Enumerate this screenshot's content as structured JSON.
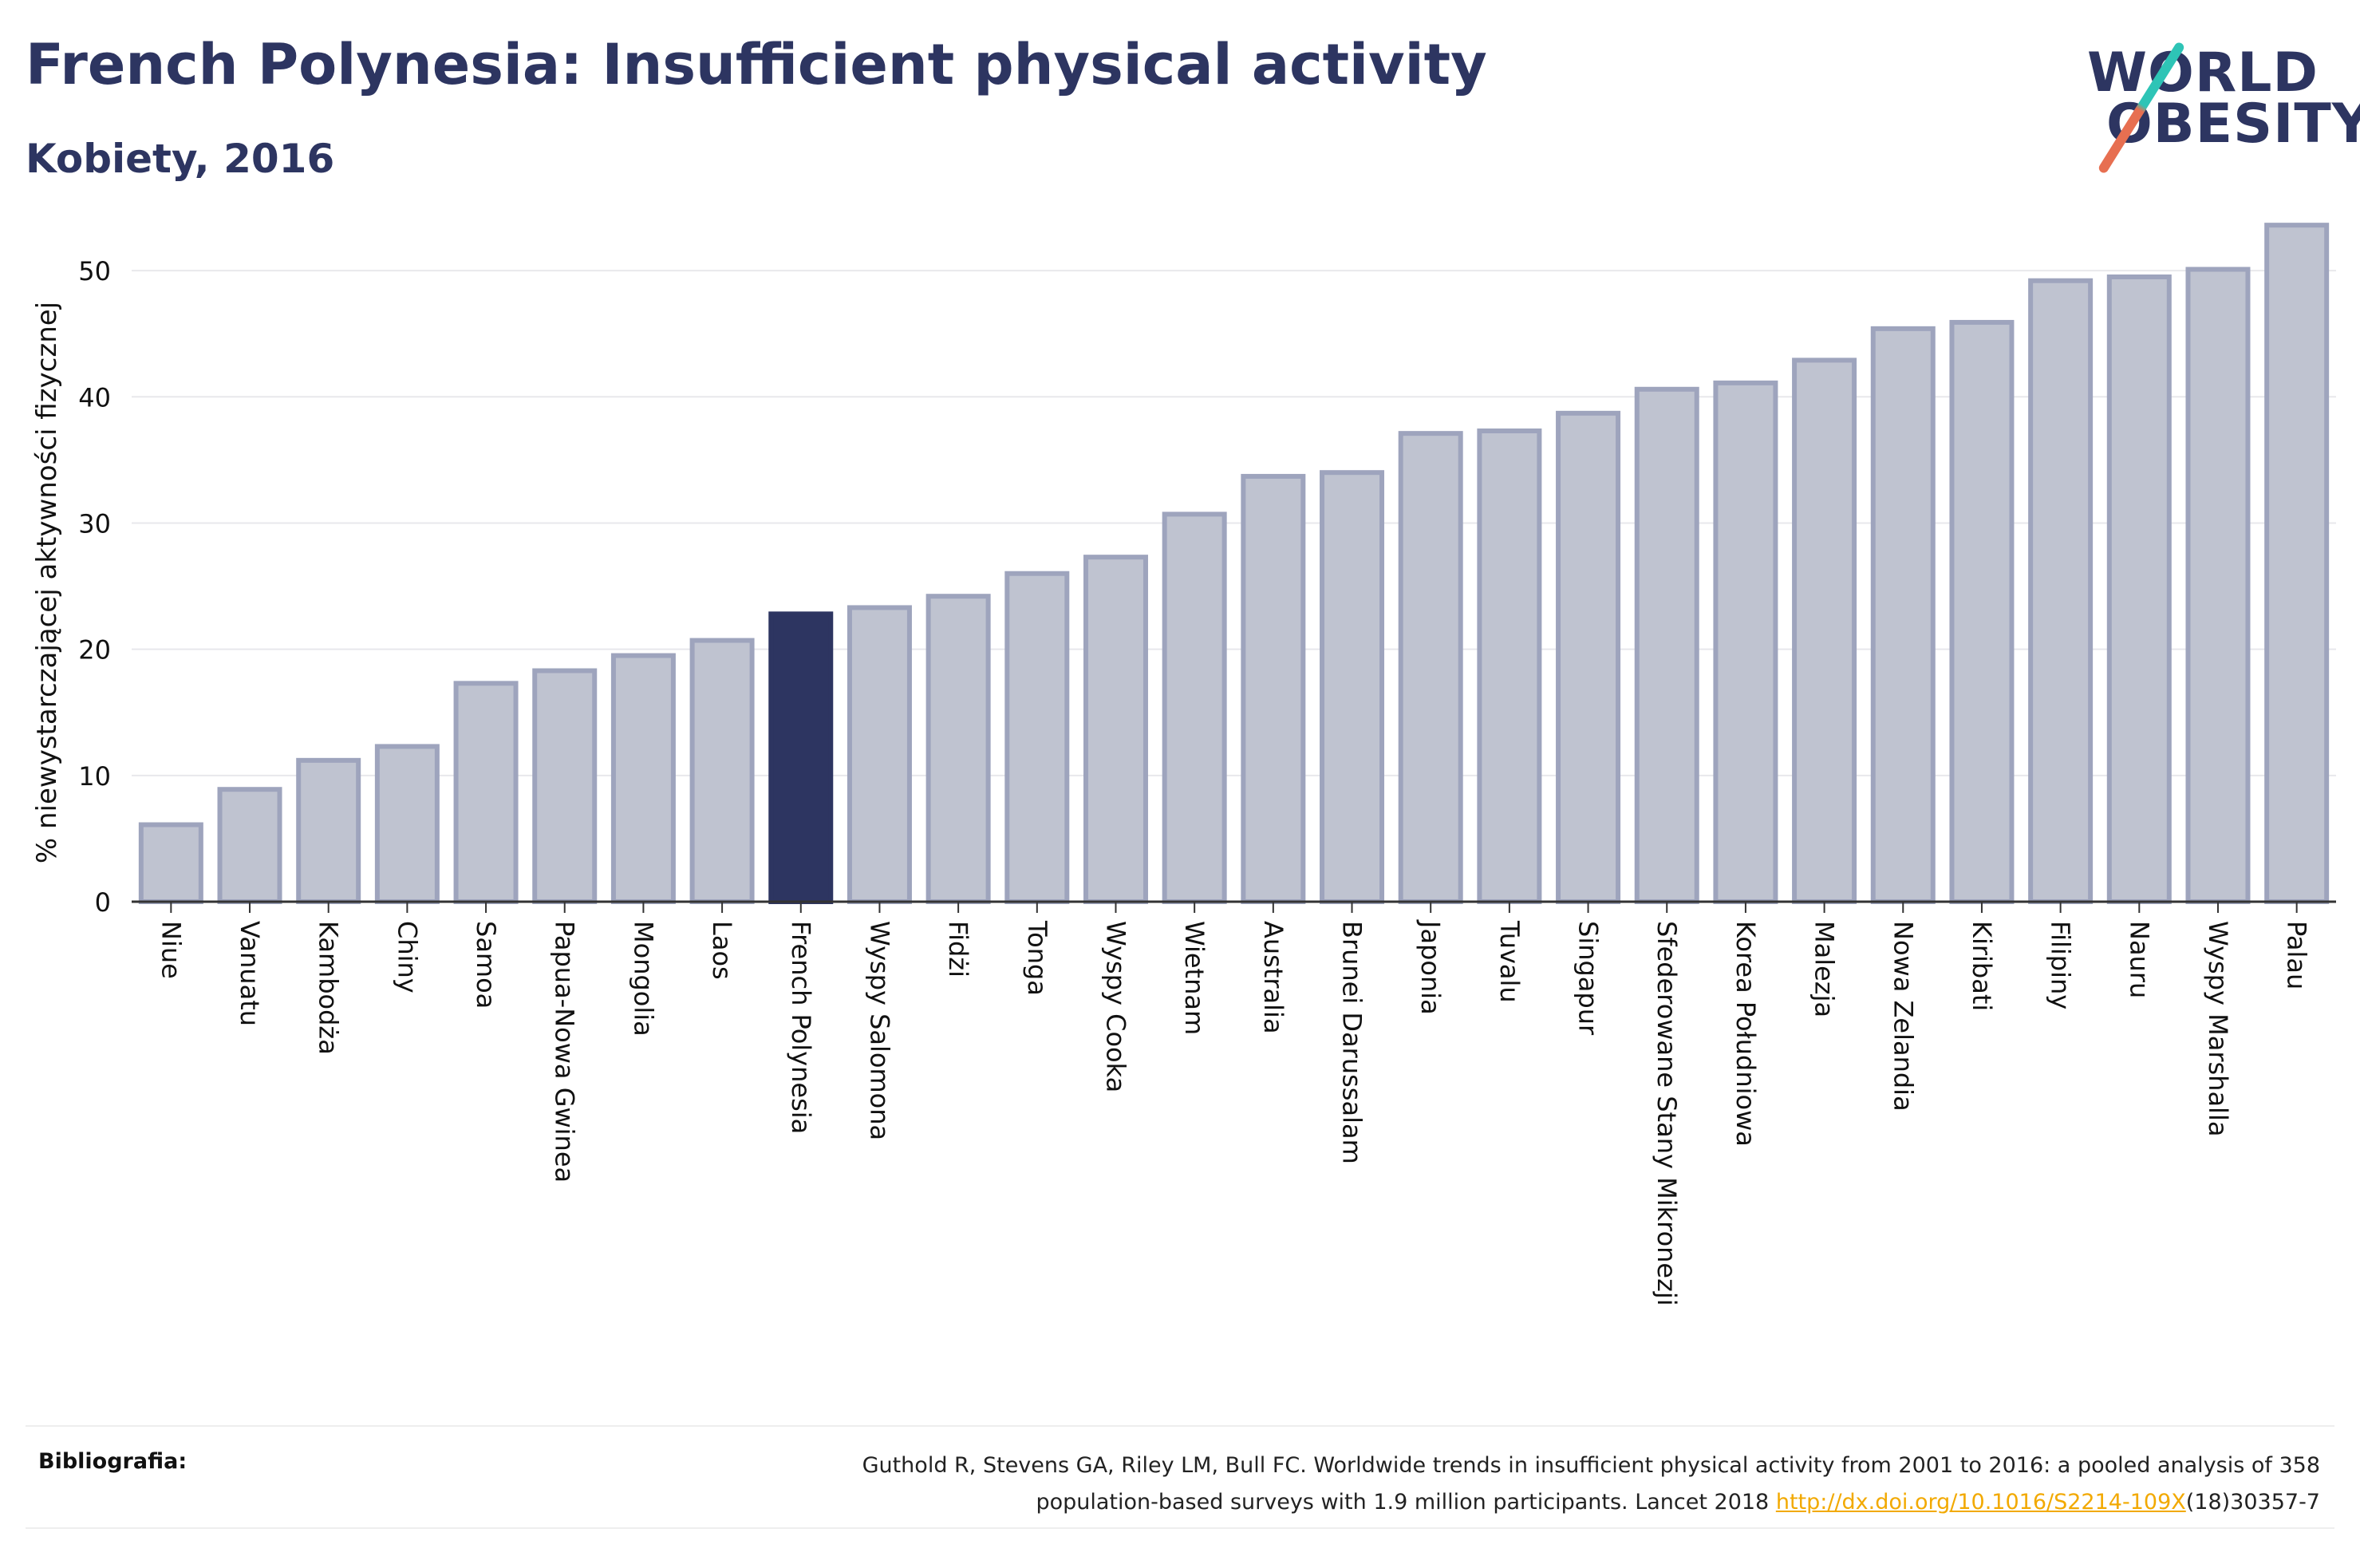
{
  "title": "French Polynesia: Insufficient physical activity",
  "subtitle": "Kobiety, 2016",
  "logo": {
    "line1": "WORLD",
    "line2": "OBESITY"
  },
  "colors": {
    "highlight": "#2d3561",
    "bar": "#bfc3d0",
    "bar_border": "#9ea4bd",
    "grid": "#e8e8ec",
    "axis": "#333333"
  },
  "chart_data": {
    "type": "bar",
    "title": "French Polynesia: Insufficient physical activity",
    "subtitle": "Kobiety, 2016",
    "xlabel": "",
    "ylabel": "% niewystarczającej aktywności fizycznej",
    "ylim": [
      0,
      55
    ],
    "yticks": [
      0,
      10,
      20,
      30,
      40,
      50
    ],
    "grid": true,
    "highlight": "French Polynesia",
    "categories": [
      "Niue",
      "Vanuatu",
      "Kambodża",
      "Chiny",
      "Samoa",
      "Papua-Nowa Gwinea",
      "Mongolia",
      "Laos",
      "French Polynesia",
      "Wyspy Salomona",
      "Fidżi",
      "Tonga",
      "Wyspy Cooka",
      "Wietnam",
      "Australia",
      "Brunei Darussalam",
      "Japonia",
      "Tuvalu",
      "Singapur",
      "Sfederowane Stany Mikronezji",
      "Korea Południowa",
      "Malezja",
      "Nowa Zelandia",
      "Kiribati",
      "Filipiny",
      "Nauru",
      "Wyspy Marshalla",
      "Palau"
    ],
    "values": [
      6.1,
      8.9,
      11.2,
      12.3,
      17.3,
      18.3,
      19.5,
      20.7,
      22.8,
      23.3,
      24.2,
      26.0,
      27.3,
      30.7,
      33.7,
      34.0,
      37.1,
      37.3,
      38.7,
      40.6,
      41.1,
      42.9,
      45.4,
      45.9,
      49.2,
      49.5,
      50.1,
      53.6
    ]
  },
  "footer": {
    "label": "Bibliografia:",
    "line1": "Guthold R, Stevens GA, Riley LM, Bull FC. Worldwide trends in insufficient physical activity from 2001 to 2016: a pooled analysis of 358",
    "line2_before": "population-based surveys with 1.9 million participants. Lancet 2018 ",
    "link": "http://dx.doi.org/10.1016/S2214-109X",
    "line2_after": "(18)30357-7"
  }
}
